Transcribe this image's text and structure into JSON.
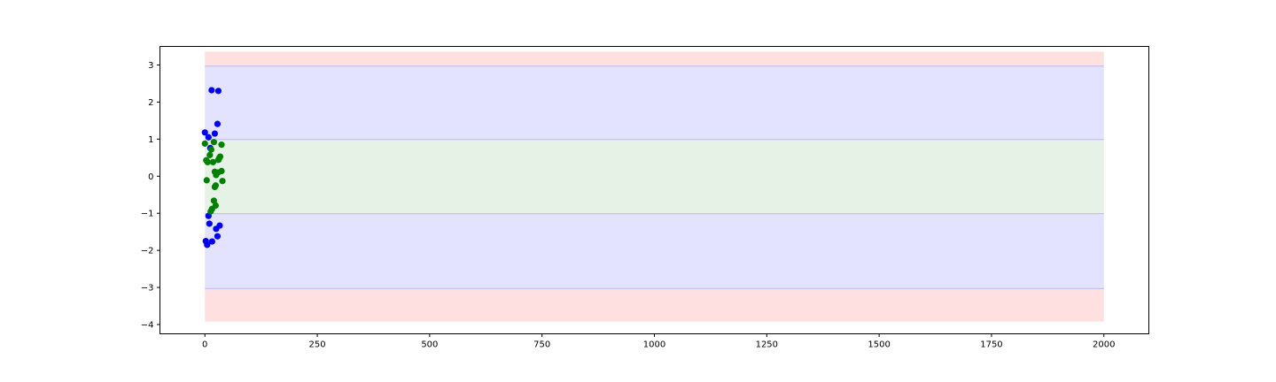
{
  "chart_data": {
    "type": "scatter",
    "title": "",
    "xlabel": "",
    "ylabel": "",
    "xlim": [
      -100,
      2100
    ],
    "ylim": [
      -4.25,
      3.5
    ],
    "x_ticks": [
      0,
      250,
      500,
      750,
      1000,
      1250,
      1500,
      1750,
      2000
    ],
    "x_tick_labels": [
      "0",
      "250",
      "500",
      "750",
      "1000",
      "1250",
      "1500",
      "1750",
      "2000"
    ],
    "y_ticks": [
      3,
      2,
      1,
      0,
      -1,
      -2,
      -3,
      -4
    ],
    "y_tick_labels": [
      "3",
      "2",
      "1",
      "0",
      "−1",
      "−2",
      "−3",
      "−4"
    ],
    "grid": false,
    "bands": [
      {
        "x_range": [
          0,
          2000
        ],
        "y_range": [
          2.97,
          3.36
        ],
        "color": "#ffe0e0"
      },
      {
        "x_range": [
          0,
          2000
        ],
        "y_range": [
          -3.92,
          -3.03
        ],
        "color": "#ffe0e0"
      },
      {
        "x_range": [
          0,
          2000
        ],
        "y_range": [
          0.99,
          2.97
        ],
        "color": "#e3e3ff"
      },
      {
        "x_range": [
          0,
          2000
        ],
        "y_range": [
          -3.03,
          -1.01
        ],
        "color": "#e3e3ff"
      },
      {
        "x_range": [
          0,
          2000
        ],
        "y_range": [
          -1.01,
          0.99
        ],
        "color": "#e6f2e6"
      }
    ],
    "band_lines": {
      "values": [
        2.97,
        0.99,
        -1.01,
        -3.03
      ],
      "x_range": [
        0,
        2000
      ],
      "color": "#c3c3f0"
    },
    "series": [
      {
        "color": "#0000ee",
        "points": [
          [
            15,
            2.32
          ],
          [
            30,
            2.3
          ],
          [
            28,
            1.41
          ],
          [
            0,
            1.18
          ],
          [
            22,
            1.15
          ],
          [
            8,
            1.05
          ],
          [
            12,
            0.76
          ],
          [
            8,
            -1.07
          ],
          [
            10,
            -1.28
          ],
          [
            33,
            -1.33
          ],
          [
            25,
            -1.42
          ],
          [
            28,
            -1.62
          ],
          [
            16,
            -1.76
          ],
          [
            2,
            -1.75
          ],
          [
            5,
            -1.85
          ]
        ]
      },
      {
        "color": "#008000",
        "points": [
          [
            0,
            0.88
          ],
          [
            37,
            0.85
          ],
          [
            20,
            0.92
          ],
          [
            14,
            0.72
          ],
          [
            11,
            0.57
          ],
          [
            34,
            0.53
          ],
          [
            3,
            0.43
          ],
          [
            18,
            0.38
          ],
          [
            6,
            0.38
          ],
          [
            30,
            0.44
          ],
          [
            32,
            0.49
          ],
          [
            22,
            0.12
          ],
          [
            29,
            0.1
          ],
          [
            37,
            0.14
          ],
          [
            25,
            0.03
          ],
          [
            4,
            -0.11
          ],
          [
            39,
            -0.13
          ],
          [
            24,
            -0.25
          ],
          [
            22,
            -0.29
          ],
          [
            20,
            -0.66
          ],
          [
            24,
            -0.79
          ],
          [
            16,
            -0.88
          ],
          [
            13,
            -0.95
          ]
        ]
      }
    ]
  }
}
